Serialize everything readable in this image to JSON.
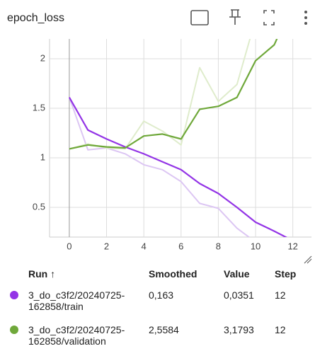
{
  "chart_data": {
    "type": "line",
    "title": "epoch_loss",
    "x": [
      0,
      1,
      2,
      3,
      4,
      5,
      6,
      7,
      8,
      9,
      10,
      11,
      12
    ],
    "series": [
      {
        "name": "3_do_c3f2/20240725-162858/train",
        "color": "#9334e6",
        "raw_color": "#dcc6f3",
        "values": [
          1.61,
          1.28,
          1.19,
          1.11,
          1.04,
          0.96,
          0.88,
          0.74,
          0.64,
          0.5,
          0.35,
          0.26,
          0.163
        ],
        "raw_values": [
          1.61,
          1.08,
          1.1,
          1.04,
          0.93,
          0.88,
          0.76,
          0.54,
          0.49,
          0.29,
          0.15,
          0.08,
          0.0351
        ]
      },
      {
        "name": "3_do_c3f2/20240725-162858/validation",
        "color": "#6fa83a",
        "raw_color": "#dfeccc",
        "values": [
          1.09,
          1.13,
          1.11,
          1.1,
          1.22,
          1.24,
          1.19,
          1.49,
          1.52,
          1.61,
          1.98,
          2.14,
          2.5584
        ],
        "raw_values": [
          1.09,
          1.14,
          1.1,
          1.09,
          1.37,
          1.27,
          1.13,
          1.91,
          1.57,
          1.74,
          2.4,
          2.3,
          3.1793
        ]
      }
    ],
    "xlim": [
      -1.06,
      13
    ],
    "xticks": [
      0,
      2,
      4,
      6,
      8,
      10,
      12
    ],
    "ylim": [
      0.2,
      2.2
    ],
    "yticks": [
      0.5,
      1,
      1.5,
      2
    ],
    "grid": true,
    "table": {
      "header": [
        "Run ↑",
        "Smoothed",
        "Value",
        "Step"
      ],
      "rows": [
        [
          "3_do_c3f2/20240725-162858/train",
          "0,163",
          "0,0351",
          "12"
        ],
        [
          "3_do_c3f2/20240725-162858/validation",
          "2,5584",
          "3,1793",
          "12"
        ]
      ]
    }
  }
}
